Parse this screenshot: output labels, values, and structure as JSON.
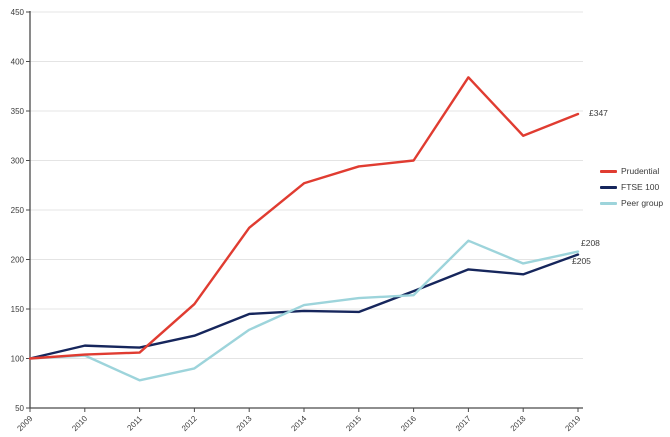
{
  "chart_data": {
    "type": "line",
    "title": "",
    "xlabel": "",
    "ylabel": "",
    "x_categories": [
      "2009",
      "2010",
      "2011",
      "2012",
      "2013",
      "2014",
      "2015",
      "2016",
      "2017",
      "2018",
      "2019"
    ],
    "ylim": [
      50,
      450
    ],
    "y_ticks": [
      50,
      100,
      150,
      200,
      250,
      300,
      350,
      400,
      450
    ],
    "grid": "horizontal",
    "legend_position": "right",
    "series": [
      {
        "name": "Prudential",
        "color": "#e03c31",
        "values": [
          100,
          104,
          106,
          155,
          232,
          277,
          294,
          300,
          384,
          325,
          347
        ],
        "end_label": "£347"
      },
      {
        "name": "FTSE 100",
        "color": "#16265c",
        "values": [
          100,
          113,
          111,
          123,
          145,
          148,
          147,
          168,
          190,
          185,
          205
        ],
        "end_label": "£205"
      },
      {
        "name": "Peer group",
        "color": "#9dd4db",
        "values": [
          100,
          103,
          78,
          90,
          129,
          154,
          161,
          164,
          219,
          196,
          208
        ],
        "end_label": "£208"
      }
    ]
  }
}
